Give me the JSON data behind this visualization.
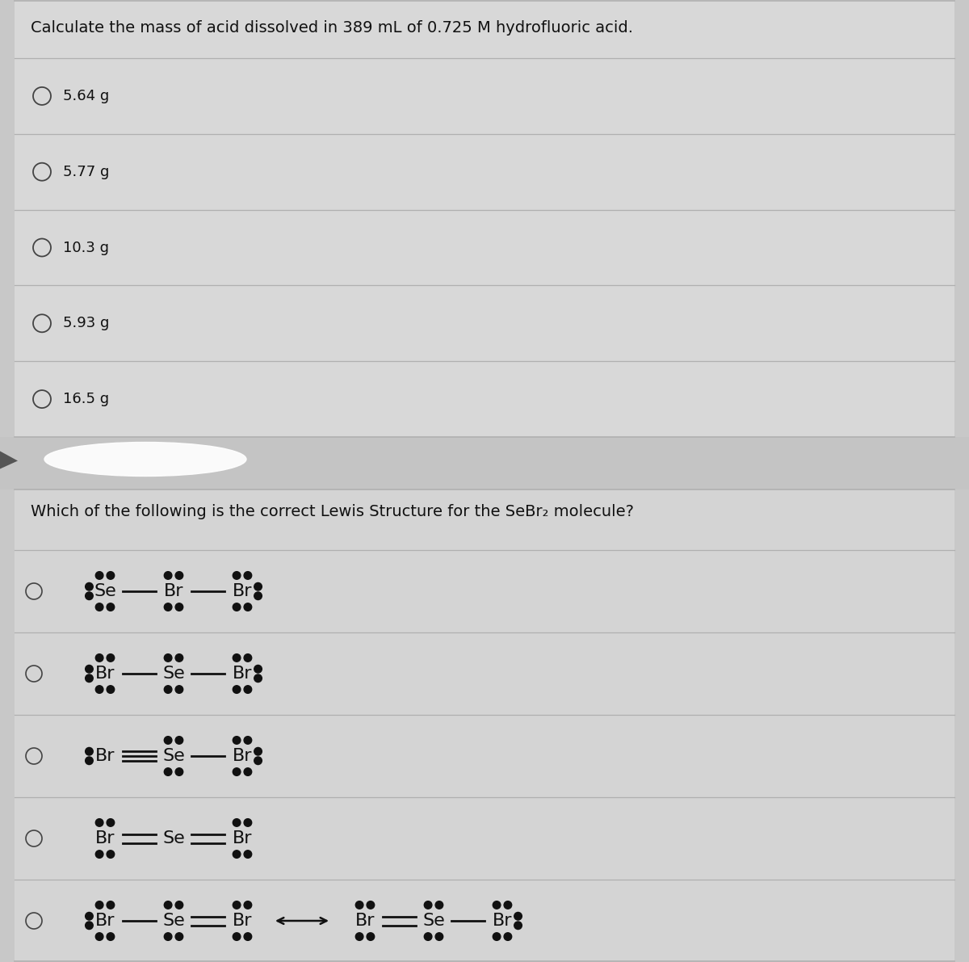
{
  "bg_color": "#c8c8c8",
  "section1_bg": "#d8d8d8",
  "section2_bg": "#d4d4d4",
  "interlude_bg": "#c4c4c4",
  "text_color": "#111111",
  "q1_title": "Calculate the mass of acid dissolved in 389 mL of 0.725 M hydrofluoric acid.",
  "q1_options": [
    "5.64 g",
    "5.77 g",
    "10.3 g",
    "5.93 g",
    "16.5 g"
  ],
  "q2_title": "Which of the following is the correct Lewis Structure for the SeBr₂ molecule?",
  "divider_color": "#b0b0b0",
  "option_circle_color": "#444444",
  "dot_color": "#111111",
  "line_color": "#111111",
  "font_size_q": 14,
  "font_size_opt": 13,
  "font_size_struct": 16,
  "figw": 12.0,
  "figh": 11.91
}
